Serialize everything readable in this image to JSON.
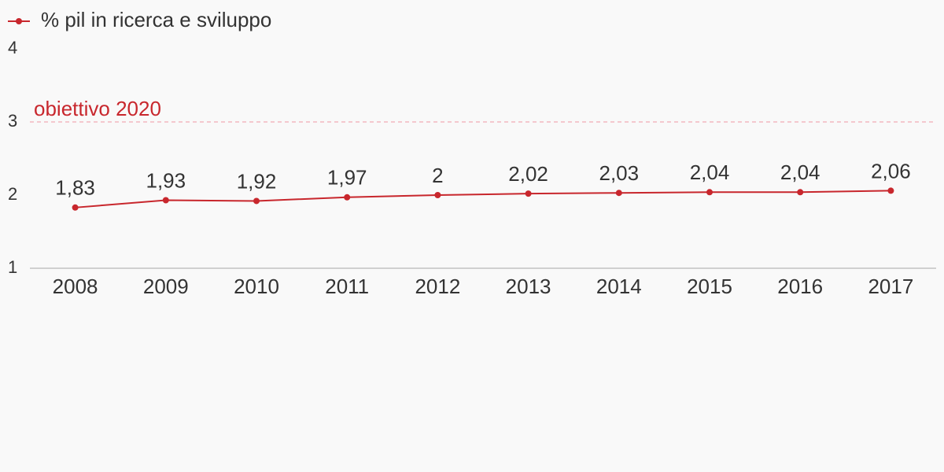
{
  "chart_data": {
    "type": "line",
    "categories": [
      "2008",
      "2009",
      "2010",
      "2011",
      "2012",
      "2013",
      "2014",
      "2015",
      "2016",
      "2017"
    ],
    "series": [
      {
        "name": "% pil in ricerca e sviluppo",
        "color": "#c8272d",
        "values": [
          1.83,
          1.93,
          1.92,
          1.97,
          2,
          2.02,
          2.03,
          2.04,
          2.04,
          2.06
        ],
        "value_labels": [
          "1,83",
          "1,93",
          "1,92",
          "1,97",
          "2",
          "2,02",
          "2,03",
          "2,04",
          "2,04",
          "2,06"
        ]
      }
    ],
    "ylim": [
      1,
      4
    ],
    "yticks": [
      1,
      2,
      3,
      4
    ],
    "reference_line": {
      "value": 3,
      "label": "obiettivo 2020"
    },
    "legend": "top-left"
  }
}
